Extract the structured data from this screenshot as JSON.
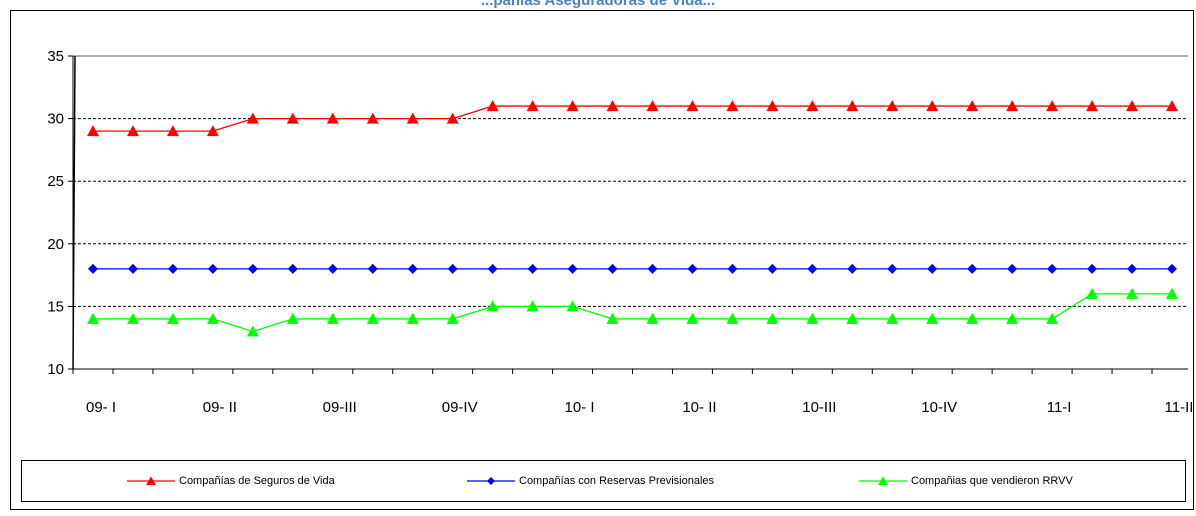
{
  "chart_data": {
    "type": "line",
    "title": "...pañías Aseguradoras de Vida...",
    "xlabel": "",
    "ylabel": "",
    "ylim": [
      10,
      35
    ],
    "yticks": [
      10,
      15,
      20,
      25,
      30,
      35
    ],
    "grid": "horizontal dashed",
    "legend_position": "bottom",
    "xtick_labels": [
      "09- I",
      "09- II",
      "09-III",
      "09-IV",
      "10- I",
      "10- II",
      "10-III",
      "10-IV",
      "11-I",
      "11-II"
    ],
    "series": [
      {
        "name": "Compañías de Seguros de Vida",
        "color": "#ff0000",
        "marker": "triangle",
        "values": [
          29,
          29,
          29,
          29,
          30,
          30,
          30,
          30,
          30,
          30,
          31,
          31,
          31,
          31,
          31,
          31,
          31,
          31,
          31,
          31,
          31,
          31,
          31,
          31,
          31,
          31,
          31,
          31
        ]
      },
      {
        "name": "Compañías con Reservas Previsionales",
        "color": "#0000ff",
        "marker": "diamond",
        "values": [
          18,
          18,
          18,
          18,
          18,
          18,
          18,
          18,
          18,
          18,
          18,
          18,
          18,
          18,
          18,
          18,
          18,
          18,
          18,
          18,
          18,
          18,
          18,
          18,
          18,
          18,
          18,
          18
        ]
      },
      {
        "name": "Compañias que vendieron RRVV",
        "color": "#00ff00",
        "marker": "triangle",
        "values": [
          14,
          14,
          14,
          14,
          13,
          14,
          14,
          14,
          14,
          14,
          15,
          15,
          15,
          14,
          14,
          14,
          14,
          14,
          14,
          14,
          14,
          14,
          14,
          14,
          14,
          16,
          16,
          16
        ]
      }
    ]
  }
}
